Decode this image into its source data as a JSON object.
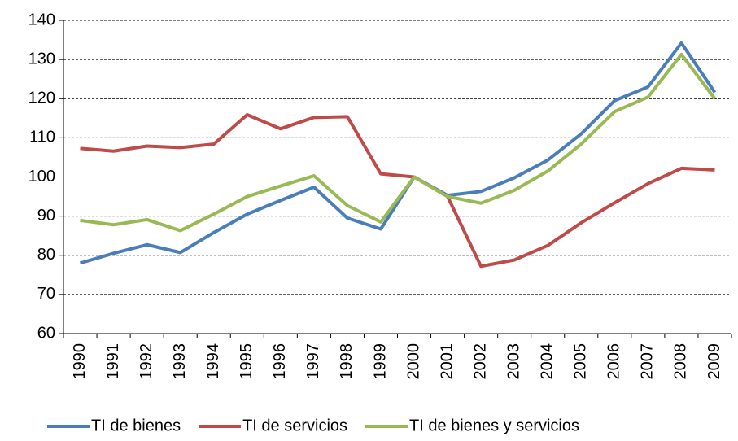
{
  "chart_data": {
    "type": "line",
    "categories": [
      "1990",
      "1991",
      "1992",
      "1993",
      "1994",
      "1995",
      "1996",
      "1997",
      "1998",
      "1999",
      "2000",
      "2001",
      "2002",
      "2003",
      "2004",
      "2005",
      "2006",
      "2007",
      "2008",
      "2009"
    ],
    "series": [
      {
        "name": "TI de bienes",
        "color": "#4a7ebb",
        "values": [
          78,
          80.5,
          82.7,
          80.7,
          85.8,
          90.5,
          94,
          97.4,
          89.5,
          86.7,
          100,
          95.3,
          96.3,
          99.8,
          104.3,
          111,
          119.5,
          123,
          134.2,
          121.6
        ]
      },
      {
        "name": "TI de servicios",
        "color": "#be4b48",
        "values": [
          107.3,
          106.6,
          107.9,
          107.5,
          108.4,
          115.9,
          112.3,
          115.2,
          115.4,
          100.8,
          100,
          95,
          77.2,
          78.8,
          82.5,
          88.3,
          93.4,
          98.3,
          102.2,
          101.8
        ]
      },
      {
        "name": "TI de bienes y servicios",
        "color": "#98b954",
        "values": [
          88.9,
          87.8,
          89.1,
          86.3,
          90.5,
          95,
          97.7,
          100.3,
          92.7,
          88.5,
          100,
          95,
          93.3,
          96.6,
          101.5,
          108.4,
          116.7,
          120.4,
          131.3,
          120
        ]
      }
    ],
    "ylim": [
      60,
      140
    ],
    "yticks": [
      60,
      70,
      80,
      90,
      100,
      110,
      120,
      130,
      140
    ],
    "grid": true,
    "legend": "bottom"
  }
}
